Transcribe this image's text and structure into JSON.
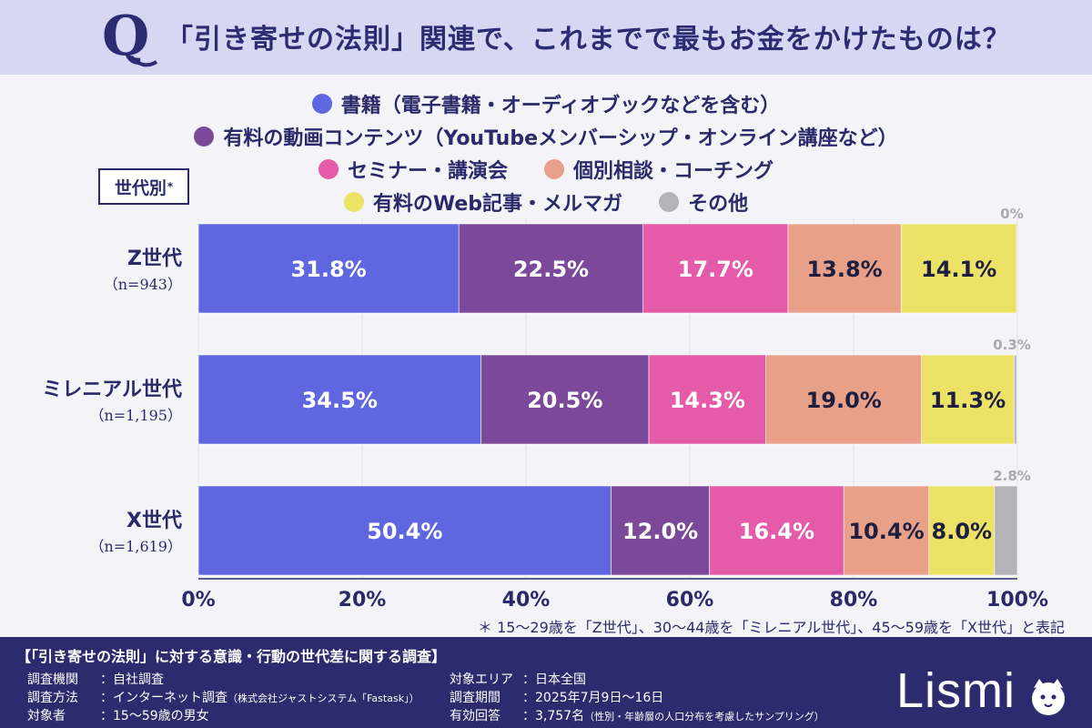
{
  "header": {
    "q_letter": "Q",
    "title": "「引き寄せの法則」関連で、これまでで最もお金をかけたものは？"
  },
  "gen_label": "世代別",
  "gen_label_mark": "*",
  "footnote": "＊ 15〜29歳を「Z世代」、30〜44歳を「ミレニアル世代」、45〜59歳を「X世代」と表記",
  "footer": {
    "title": "【「引き寄せの法則」に対する意識・行動の世代差に関する調査】",
    "left": [
      {
        "key": "調査機関",
        "val": "：自社調査",
        "note": ""
      },
      {
        "key": "調査方法",
        "val": "：インターネット調査",
        "note": "（株式会社ジャストシステム「Fastask」）"
      },
      {
        "key": "対象者",
        "val": "：15〜59歳の男女",
        "note": ""
      }
    ],
    "right": [
      {
        "key": "対象エリア",
        "val": "：日本全国",
        "note": ""
      },
      {
        "key": "調査期間",
        "val": "：2025年7月9日〜16日",
        "note": ""
      },
      {
        "key": "有効回答",
        "val": "：3,757名",
        "note": "（性別・年齢層の人口分布を考慮したサンプリング）"
      }
    ],
    "logo": "Lismi"
  },
  "chart_data": {
    "type": "bar",
    "orientation": "horizontal",
    "stacked": true,
    "xlim": [
      0,
      100
    ],
    "ticks": [
      "0%",
      "20%",
      "40%",
      "60%",
      "80%",
      "100%"
    ],
    "categories": [
      {
        "name": "Z世代",
        "n": "（n=943）"
      },
      {
        "name": "ミレニアル世代",
        "n": "（n=1,195）"
      },
      {
        "name": "X世代",
        "n": "（n=1,619）"
      }
    ],
    "series": [
      {
        "name": "書籍（電子書籍・オーディオブックなどを含む）",
        "color": "#5e67e0",
        "values": [
          31.8,
          34.5,
          50.4
        ],
        "labels": [
          "31.8%",
          "34.5%",
          "50.4%"
        ],
        "label_color": "#ffffff"
      },
      {
        "name": "有料の動画コンテンツ（YouTubeメンバーシップ・オンライン講座など）",
        "color": "#7c4899",
        "values": [
          22.5,
          20.5,
          12.0
        ],
        "labels": [
          "22.5%",
          "20.5%",
          "12.0%"
        ],
        "label_color": "#ffffff"
      },
      {
        "name": "セミナー・講演会",
        "color": "#e55aa9",
        "values": [
          17.7,
          14.3,
          16.4
        ],
        "labels": [
          "17.7%",
          "14.3%",
          "16.4%"
        ],
        "label_color": "#ffffff"
      },
      {
        "name": "個別相談・コーチング",
        "color": "#e9a088",
        "values": [
          13.8,
          19.0,
          10.4
        ],
        "labels": [
          "13.8%",
          "19.0%",
          "10.4%"
        ],
        "label_color": "#1e1e40"
      },
      {
        "name": "有料のWeb記事・メルマガ",
        "color": "#ebe266",
        "values": [
          14.1,
          11.3,
          8.0
        ],
        "labels": [
          "14.1%",
          "11.3%",
          "8.0%"
        ],
        "label_color": "#1e1e40"
      },
      {
        "name": "その他",
        "color": "#b3b3b9",
        "values": [
          0,
          0.3,
          2.8
        ],
        "labels": [
          "0%",
          "0.3%",
          "2.8%"
        ],
        "label_color": "#b3b3b9"
      }
    ],
    "legend_rows": [
      [
        0
      ],
      [
        1
      ],
      [
        2,
        3
      ],
      [
        4,
        5
      ]
    ]
  }
}
